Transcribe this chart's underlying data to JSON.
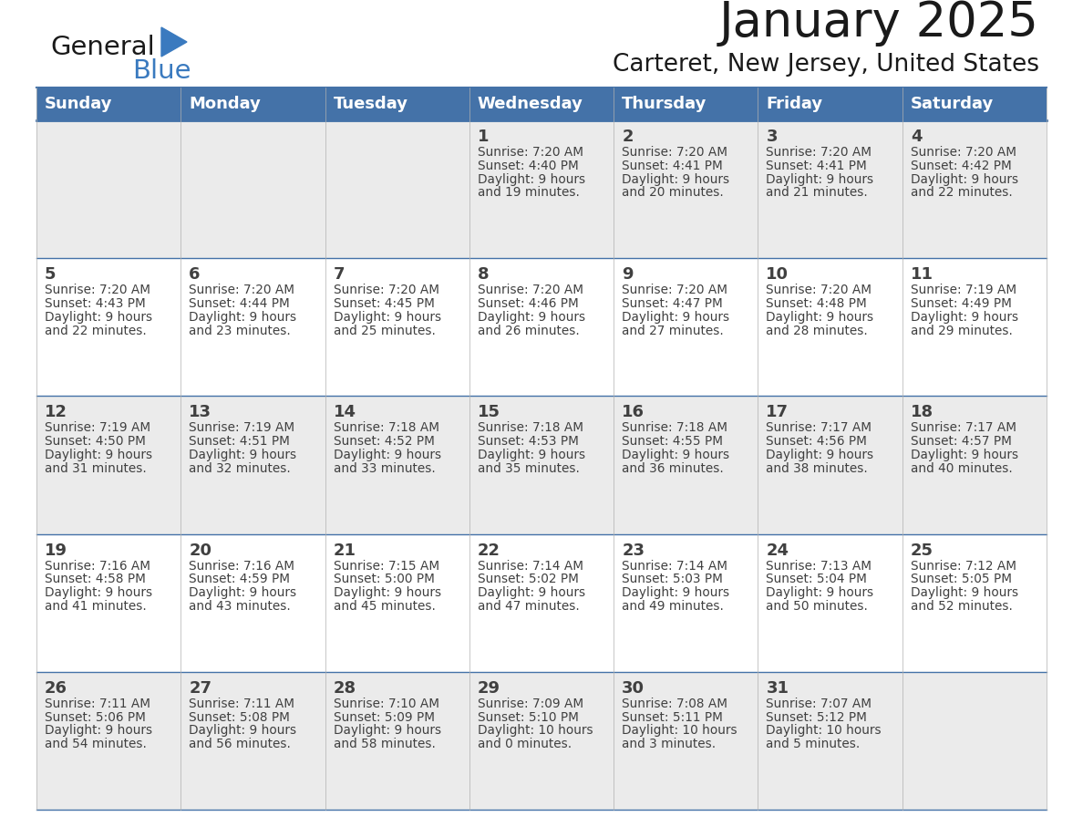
{
  "title": "January 2025",
  "subtitle": "Carteret, New Jersey, United States",
  "days_of_week": [
    "Sunday",
    "Monday",
    "Tuesday",
    "Wednesday",
    "Thursday",
    "Friday",
    "Saturday"
  ],
  "header_bg": "#4472a8",
  "header_text": "#ffffff",
  "cell_bg_light": "#ebebeb",
  "cell_bg_white": "#ffffff",
  "text_color": "#404040",
  "line_color": "#4472a8",
  "title_color": "#1a1a1a",
  "subtitle_color": "#1a1a1a",
  "row_bg": [
    "#ebebeb",
    "#ffffff",
    "#ebebeb",
    "#ffffff",
    "#ebebeb"
  ],
  "calendar_data": [
    [
      {
        "day": "",
        "lines": []
      },
      {
        "day": "",
        "lines": []
      },
      {
        "day": "",
        "lines": []
      },
      {
        "day": "1",
        "lines": [
          "Sunrise: 7:20 AM",
          "Sunset: 4:40 PM",
          "Daylight: 9 hours",
          "and 19 minutes."
        ]
      },
      {
        "day": "2",
        "lines": [
          "Sunrise: 7:20 AM",
          "Sunset: 4:41 PM",
          "Daylight: 9 hours",
          "and 20 minutes."
        ]
      },
      {
        "day": "3",
        "lines": [
          "Sunrise: 7:20 AM",
          "Sunset: 4:41 PM",
          "Daylight: 9 hours",
          "and 21 minutes."
        ]
      },
      {
        "day": "4",
        "lines": [
          "Sunrise: 7:20 AM",
          "Sunset: 4:42 PM",
          "Daylight: 9 hours",
          "and 22 minutes."
        ]
      }
    ],
    [
      {
        "day": "5",
        "lines": [
          "Sunrise: 7:20 AM",
          "Sunset: 4:43 PM",
          "Daylight: 9 hours",
          "and 22 minutes."
        ]
      },
      {
        "day": "6",
        "lines": [
          "Sunrise: 7:20 AM",
          "Sunset: 4:44 PM",
          "Daylight: 9 hours",
          "and 23 minutes."
        ]
      },
      {
        "day": "7",
        "lines": [
          "Sunrise: 7:20 AM",
          "Sunset: 4:45 PM",
          "Daylight: 9 hours",
          "and 25 minutes."
        ]
      },
      {
        "day": "8",
        "lines": [
          "Sunrise: 7:20 AM",
          "Sunset: 4:46 PM",
          "Daylight: 9 hours",
          "and 26 minutes."
        ]
      },
      {
        "day": "9",
        "lines": [
          "Sunrise: 7:20 AM",
          "Sunset: 4:47 PM",
          "Daylight: 9 hours",
          "and 27 minutes."
        ]
      },
      {
        "day": "10",
        "lines": [
          "Sunrise: 7:20 AM",
          "Sunset: 4:48 PM",
          "Daylight: 9 hours",
          "and 28 minutes."
        ]
      },
      {
        "day": "11",
        "lines": [
          "Sunrise: 7:19 AM",
          "Sunset: 4:49 PM",
          "Daylight: 9 hours",
          "and 29 minutes."
        ]
      }
    ],
    [
      {
        "day": "12",
        "lines": [
          "Sunrise: 7:19 AM",
          "Sunset: 4:50 PM",
          "Daylight: 9 hours",
          "and 31 minutes."
        ]
      },
      {
        "day": "13",
        "lines": [
          "Sunrise: 7:19 AM",
          "Sunset: 4:51 PM",
          "Daylight: 9 hours",
          "and 32 minutes."
        ]
      },
      {
        "day": "14",
        "lines": [
          "Sunrise: 7:18 AM",
          "Sunset: 4:52 PM",
          "Daylight: 9 hours",
          "and 33 minutes."
        ]
      },
      {
        "day": "15",
        "lines": [
          "Sunrise: 7:18 AM",
          "Sunset: 4:53 PM",
          "Daylight: 9 hours",
          "and 35 minutes."
        ]
      },
      {
        "day": "16",
        "lines": [
          "Sunrise: 7:18 AM",
          "Sunset: 4:55 PM",
          "Daylight: 9 hours",
          "and 36 minutes."
        ]
      },
      {
        "day": "17",
        "lines": [
          "Sunrise: 7:17 AM",
          "Sunset: 4:56 PM",
          "Daylight: 9 hours",
          "and 38 minutes."
        ]
      },
      {
        "day": "18",
        "lines": [
          "Sunrise: 7:17 AM",
          "Sunset: 4:57 PM",
          "Daylight: 9 hours",
          "and 40 minutes."
        ]
      }
    ],
    [
      {
        "day": "19",
        "lines": [
          "Sunrise: 7:16 AM",
          "Sunset: 4:58 PM",
          "Daylight: 9 hours",
          "and 41 minutes."
        ]
      },
      {
        "day": "20",
        "lines": [
          "Sunrise: 7:16 AM",
          "Sunset: 4:59 PM",
          "Daylight: 9 hours",
          "and 43 minutes."
        ]
      },
      {
        "day": "21",
        "lines": [
          "Sunrise: 7:15 AM",
          "Sunset: 5:00 PM",
          "Daylight: 9 hours",
          "and 45 minutes."
        ]
      },
      {
        "day": "22",
        "lines": [
          "Sunrise: 7:14 AM",
          "Sunset: 5:02 PM",
          "Daylight: 9 hours",
          "and 47 minutes."
        ]
      },
      {
        "day": "23",
        "lines": [
          "Sunrise: 7:14 AM",
          "Sunset: 5:03 PM",
          "Daylight: 9 hours",
          "and 49 minutes."
        ]
      },
      {
        "day": "24",
        "lines": [
          "Sunrise: 7:13 AM",
          "Sunset: 5:04 PM",
          "Daylight: 9 hours",
          "and 50 minutes."
        ]
      },
      {
        "day": "25",
        "lines": [
          "Sunrise: 7:12 AM",
          "Sunset: 5:05 PM",
          "Daylight: 9 hours",
          "and 52 minutes."
        ]
      }
    ],
    [
      {
        "day": "26",
        "lines": [
          "Sunrise: 7:11 AM",
          "Sunset: 5:06 PM",
          "Daylight: 9 hours",
          "and 54 minutes."
        ]
      },
      {
        "day": "27",
        "lines": [
          "Sunrise: 7:11 AM",
          "Sunset: 5:08 PM",
          "Daylight: 9 hours",
          "and 56 minutes."
        ]
      },
      {
        "day": "28",
        "lines": [
          "Sunrise: 7:10 AM",
          "Sunset: 5:09 PM",
          "Daylight: 9 hours",
          "and 58 minutes."
        ]
      },
      {
        "day": "29",
        "lines": [
          "Sunrise: 7:09 AM",
          "Sunset: 5:10 PM",
          "Daylight: 10 hours",
          "and 0 minutes."
        ]
      },
      {
        "day": "30",
        "lines": [
          "Sunrise: 7:08 AM",
          "Sunset: 5:11 PM",
          "Daylight: 10 hours",
          "and 3 minutes."
        ]
      },
      {
        "day": "31",
        "lines": [
          "Sunrise: 7:07 AM",
          "Sunset: 5:12 PM",
          "Daylight: 10 hours",
          "and 5 minutes."
        ]
      },
      {
        "day": "",
        "lines": []
      }
    ]
  ],
  "logo_color_general": "#1a1a1a",
  "logo_color_blue": "#3a7abf",
  "logo_triangle_color": "#3a7abf"
}
